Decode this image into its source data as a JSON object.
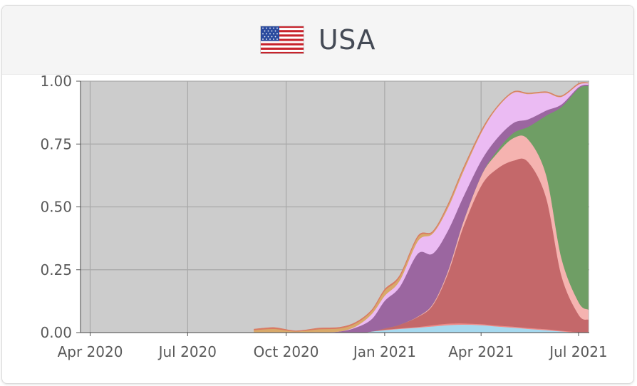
{
  "card": {
    "country": "USA",
    "flag_icon": "usa-flag-icon"
  },
  "chart_data": {
    "type": "area",
    "stacked": true,
    "normalized": true,
    "title": "USA",
    "xlabel": "",
    "ylabel": "",
    "x_ticks": [
      "Apr 2020",
      "Jul 2020",
      "Oct 2020",
      "Jan 2021",
      "Apr 2021",
      "Jul 2021"
    ],
    "y_ticks": [
      "0.00",
      "0.25",
      "0.50",
      "0.75",
      "1.00"
    ],
    "ylim": [
      0,
      1
    ],
    "xlim": [
      "2020-03-23",
      "2021-07-11"
    ],
    "grid": true,
    "background": "#cccccc",
    "x": [
      "2020-09-01",
      "2020-09-20",
      "2020-10-10",
      "2020-11-01",
      "2020-11-20",
      "2020-12-05",
      "2020-12-20",
      "2021-01-01",
      "2021-01-15",
      "2021-02-01",
      "2021-02-15",
      "2021-03-01",
      "2021-03-15",
      "2021-04-01",
      "2021-04-15",
      "2021-05-01",
      "2021-05-15",
      "2021-06-01",
      "2021-06-15",
      "2021-07-01",
      "2021-07-10"
    ],
    "series": [
      {
        "color": "#a6d9ef",
        "values": [
          0.0,
          0.0,
          0.0,
          0.0,
          0.0,
          0.0,
          0.005,
          0.01,
          0.015,
          0.02,
          0.025,
          0.03,
          0.032,
          0.03,
          0.025,
          0.02,
          0.015,
          0.01,
          0.005,
          0.0,
          0.0
        ]
      },
      {
        "color": "#f08c88",
        "values": [
          0.0,
          0.0,
          0.0,
          0.0,
          0.0,
          0.0,
          0.0,
          0.002,
          0.002,
          0.003,
          0.005,
          0.006,
          0.005,
          0.004,
          0.004,
          0.004,
          0.004,
          0.004,
          0.003,
          0.002,
          0.002
        ]
      },
      {
        "color": "#c4686a",
        "values": [
          0.0,
          0.0,
          0.0,
          0.0,
          0.0,
          0.0,
          0.0,
          0.005,
          0.015,
          0.04,
          0.08,
          0.2,
          0.38,
          0.55,
          0.62,
          0.66,
          0.66,
          0.52,
          0.22,
          0.07,
          0.05
        ]
      },
      {
        "color": "#f5b3b0",
        "values": [
          0.0,
          0.0,
          0.0,
          0.0,
          0.0,
          0.0,
          0.0,
          0.0,
          0.0,
          0.002,
          0.005,
          0.01,
          0.02,
          0.04,
          0.06,
          0.09,
          0.09,
          0.09,
          0.07,
          0.05,
          0.04
        ]
      },
      {
        "color": "#6f9e65",
        "values": [
          0.0,
          0.0,
          0.0,
          0.0,
          0.0,
          0.0,
          0.0,
          0.0,
          0.0,
          0.0,
          0.0,
          0.0,
          0.0,
          0.0,
          0.01,
          0.02,
          0.05,
          0.24,
          0.6,
          0.85,
          0.89
        ]
      },
      {
        "color": "#9b66a0",
        "values": [
          0.0,
          0.0,
          0.0,
          0.002,
          0.005,
          0.02,
          0.05,
          0.11,
          0.15,
          0.25,
          0.2,
          0.16,
          0.1,
          0.06,
          0.05,
          0.04,
          0.03,
          0.02,
          0.01,
          0.005,
          0.005
        ]
      },
      {
        "color": "#ebbbf3",
        "values": [
          0.0,
          0.0,
          0.0,
          0.0,
          0.0,
          0.005,
          0.02,
          0.02,
          0.025,
          0.05,
          0.08,
          0.09,
          0.1,
          0.11,
          0.12,
          0.12,
          0.1,
          0.07,
          0.03,
          0.01,
          0.005
        ]
      },
      {
        "color": "#d8a96a",
        "values": [
          0.01,
          0.015,
          0.005,
          0.012,
          0.012,
          0.012,
          0.012,
          0.02,
          0.015,
          0.015,
          0.005,
          0.01,
          0.01,
          0.005,
          0.003,
          0.002,
          0.002,
          0.002,
          0.002,
          0.002,
          0.001
        ]
      },
      {
        "color": "#d97a63",
        "values": [
          0.004,
          0.005,
          0.002,
          0.004,
          0.004,
          0.004,
          0.004,
          0.005,
          0.005,
          0.004,
          0.003,
          0.004,
          0.004,
          0.004,
          0.002,
          0.002,
          0.002,
          0.002,
          0.002,
          0.002,
          0.001
        ]
      }
    ]
  }
}
